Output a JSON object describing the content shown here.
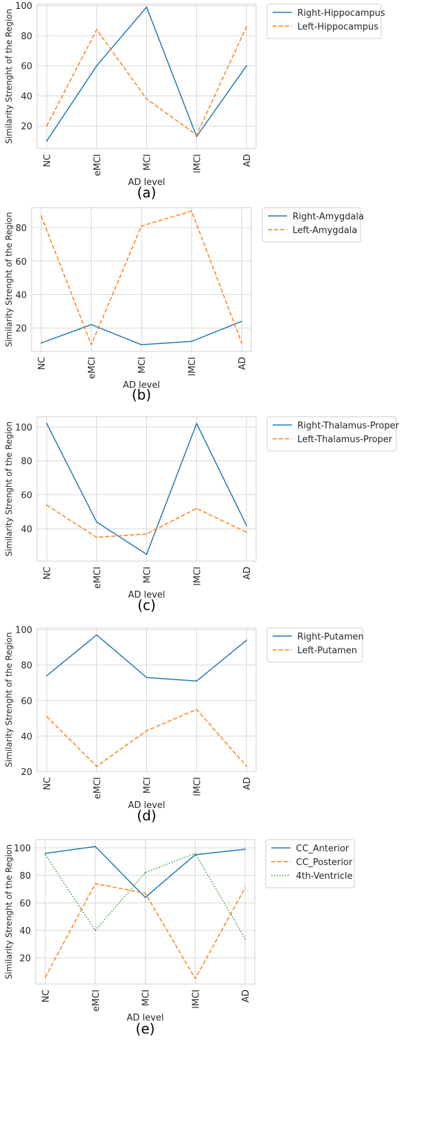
{
  "chart_data": [
    {
      "type": "line",
      "caption": "(a)",
      "xlabel": "AD level",
      "ylabel": "Similarity Strenght of the Region",
      "categories": [
        "NC",
        "eMCI",
        "MCI",
        "lMCI",
        "AD"
      ],
      "ylim": [
        5,
        101
      ],
      "yticks": [
        20,
        40,
        60,
        80,
        100
      ],
      "grid": true,
      "legend_position": "outside-top-right",
      "series": [
        {
          "name": "Right-Hippocampus",
          "style": "solid",
          "color": "#1f77b4",
          "values": [
            10,
            60,
            99,
            13,
            60
          ]
        },
        {
          "name": "Left-Hippocampus",
          "style": "dashed",
          "color": "#ff7f0e",
          "values": [
            20,
            84,
            38,
            14,
            86
          ]
        }
      ]
    },
    {
      "type": "line",
      "caption": "(b)",
      "xlabel": "AD level",
      "ylabel": "Similarity Strenght of the Region",
      "categories": [
        "NC",
        "eMCI",
        "MCI",
        "lMCI",
        "AD"
      ],
      "ylim": [
        6,
        92
      ],
      "yticks": [
        20,
        40,
        60,
        80
      ],
      "grid": true,
      "legend_position": "outside-top-right",
      "series": [
        {
          "name": "Right-Amygdala",
          "style": "solid",
          "color": "#1f77b4",
          "values": [
            11,
            22,
            10,
            12,
            24
          ]
        },
        {
          "name": "Left-Amygdala",
          "style": "dashed",
          "color": "#ff7f0e",
          "values": [
            87,
            10,
            81,
            90,
            11
          ]
        }
      ]
    },
    {
      "type": "line",
      "caption": "(c)",
      "xlabel": "AD level",
      "ylabel": "Similarity Strenght of the Region",
      "categories": [
        "NC",
        "eMCI",
        "MCI",
        "lMCI",
        "AD"
      ],
      "ylim": [
        21,
        106
      ],
      "yticks": [
        40,
        60,
        80,
        100
      ],
      "grid": true,
      "legend_position": "outside-top-right",
      "series": [
        {
          "name": "Right-Thalamus-Proper",
          "style": "solid",
          "color": "#1f77b4",
          "values": [
            102,
            44,
            25,
            102,
            42
          ]
        },
        {
          "name": "Left-Thalamus-Proper",
          "style": "dashed",
          "color": "#ff7f0e",
          "values": [
            54,
            35,
            37,
            52,
            38
          ]
        }
      ]
    },
    {
      "type": "line",
      "caption": "(d)",
      "xlabel": "AD level",
      "ylabel": "Similarity Strenght of the Region",
      "categories": [
        "NC",
        "eMCI",
        "MCI",
        "lMCI",
        "AD"
      ],
      "ylim": [
        20,
        101
      ],
      "yticks": [
        20,
        40,
        60,
        80,
        100
      ],
      "grid": true,
      "legend_position": "outside-top-right",
      "series": [
        {
          "name": "Right-Putamen",
          "style": "solid",
          "color": "#1f77b4",
          "values": [
            74,
            97,
            73,
            71,
            94
          ]
        },
        {
          "name": "Left-Putamen",
          "style": "dashed",
          "color": "#ff7f0e",
          "values": [
            51,
            23,
            43,
            55,
            23
          ]
        }
      ]
    },
    {
      "type": "line",
      "caption": "(e)",
      "xlabel": "AD level",
      "ylabel": "Similarity Strenght of the Region",
      "categories": [
        "NC",
        "eMCI",
        "MCI",
        "lMCI",
        "AD"
      ],
      "ylim": [
        1,
        106
      ],
      "yticks": [
        20,
        40,
        60,
        80,
        100
      ],
      "grid": true,
      "legend_position": "outside-top-right",
      "series": [
        {
          "name": "CC_Anterior",
          "style": "solid",
          "color": "#1f77b4",
          "values": [
            96,
            101,
            64,
            95,
            99
          ]
        },
        {
          "name": "CC_Posterior",
          "style": "dashed",
          "color": "#ff7f0e",
          "values": [
            6,
            74,
            67,
            5,
            71
          ]
        },
        {
          "name": "4th-Ventricle",
          "style": "dotted",
          "color": "#2ca02c",
          "values": [
            95,
            40,
            82,
            96,
            34
          ]
        }
      ]
    }
  ]
}
